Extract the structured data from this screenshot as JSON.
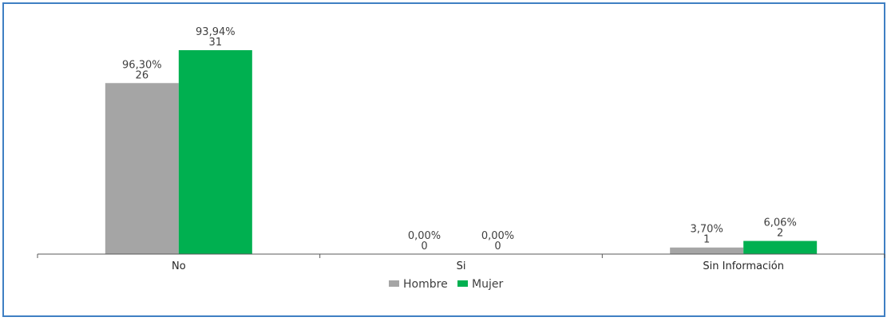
{
  "chart_data": {
    "type": "bar",
    "categories": [
      "No",
      "Si",
      "Sin Información"
    ],
    "series": [
      {
        "name": "Hombre",
        "color": "#a5a5a5",
        "values": [
          26,
          0,
          1
        ],
        "percent_labels": [
          "96,30%",
          "0,00%",
          "3,70%"
        ]
      },
      {
        "name": "Mujer",
        "color": "#00b050",
        "values": [
          31,
          0,
          2
        ],
        "percent_labels": [
          "93,94%",
          "0,00%",
          "6,06%"
        ]
      }
    ],
    "ylim": [
      0,
      31
    ],
    "legend": "bottom-center",
    "grid": false
  }
}
